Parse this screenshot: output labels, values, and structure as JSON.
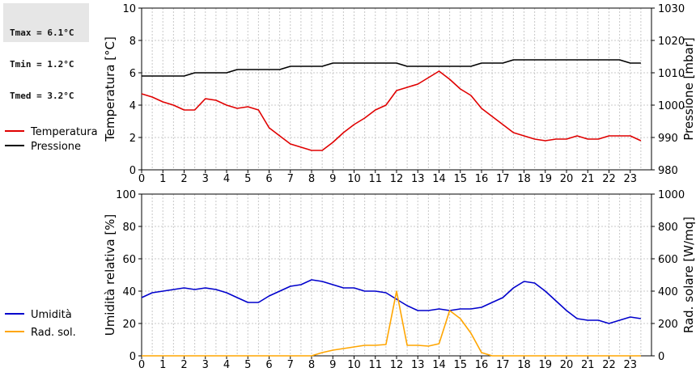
{
  "stats": [
    {
      "label": "Tmax",
      "value": "6.1°C"
    },
    {
      "label": "Tmin",
      "value": "1.2°C"
    },
    {
      "label": "Tmed",
      "value": "3.2°C"
    }
  ],
  "colors": {
    "temperature": "#e00000",
    "pressure": "#000000",
    "humidity": "#0000cc",
    "radiation": "#ffa500",
    "grid": "#c8c8c8",
    "stats_bg": "#e6e6e6"
  },
  "chart_data": [
    {
      "type": "line",
      "grid": true,
      "legend_position": "left",
      "xlim": [
        0,
        24
      ],
      "x_ticks": [
        0,
        1,
        2,
        3,
        4,
        5,
        6,
        7,
        8,
        9,
        10,
        11,
        12,
        13,
        14,
        15,
        16,
        17,
        18,
        19,
        20,
        21,
        22,
        23
      ],
      "left_axis": {
        "label": "Temperatura [°C]",
        "lim": [
          0,
          10
        ],
        "ticks": [
          0,
          2,
          4,
          6,
          8,
          10
        ]
      },
      "right_axis": {
        "label": "Pressione [mbar]",
        "lim": [
          980,
          1030
        ],
        "ticks": [
          980,
          990,
          1000,
          1010,
          1020,
          1030
        ]
      },
      "series": [
        {
          "name": "Temperatura",
          "axis": "left",
          "color": "#e00000",
          "x": [
            0,
            0.5,
            1,
            1.5,
            2,
            2.5,
            3,
            3.5,
            4,
            4.5,
            5,
            5.5,
            6,
            6.5,
            7,
            7.5,
            8,
            8.5,
            9,
            9.5,
            10,
            10.5,
            11,
            11.5,
            12,
            12.5,
            13,
            13.5,
            14,
            14.5,
            15,
            15.5,
            16,
            16.5,
            17,
            17.5,
            18,
            18.5,
            19,
            19.5,
            20,
            20.5,
            21,
            21.5,
            22,
            22.5,
            23,
            23.5
          ],
          "y": [
            4.7,
            4.5,
            4.2,
            4.0,
            3.7,
            3.7,
            4.4,
            4.3,
            4.0,
            3.8,
            3.9,
            3.7,
            2.6,
            2.1,
            1.6,
            1.4,
            1.2,
            1.2,
            1.7,
            2.3,
            2.8,
            3.2,
            3.7,
            4.0,
            4.9,
            5.1,
            5.3,
            5.7,
            6.1,
            5.6,
            5.0,
            4.6,
            3.8,
            3.3,
            2.8,
            2.3,
            2.1,
            1.9,
            1.8,
            1.9,
            1.9,
            2.1,
            1.9,
            1.9,
            2.1,
            2.1,
            2.1,
            1.8
          ]
        },
        {
          "name": "Pressione",
          "axis": "right",
          "color": "#000000",
          "x": [
            0,
            0.5,
            1,
            1.5,
            2,
            2.5,
            3,
            3.5,
            4,
            4.5,
            5,
            5.5,
            6,
            6.5,
            7,
            7.5,
            8,
            8.5,
            9,
            9.5,
            10,
            10.5,
            11,
            11.5,
            12,
            12.5,
            13,
            13.5,
            14,
            14.5,
            15,
            15.5,
            16,
            16.5,
            17,
            17.5,
            18,
            18.5,
            19,
            19.5,
            20,
            20.5,
            21,
            21.5,
            22,
            22.5,
            23,
            23.5
          ],
          "y": [
            1009,
            1009,
            1009,
            1009,
            1009,
            1010,
            1010,
            1010,
            1010,
            1011,
            1011,
            1011,
            1011,
            1011,
            1012,
            1012,
            1012,
            1012,
            1013,
            1013,
            1013,
            1013,
            1013,
            1013,
            1013,
            1012,
            1012,
            1012,
            1012,
            1012,
            1012,
            1012,
            1013,
            1013,
            1013,
            1014,
            1014,
            1014,
            1014,
            1014,
            1014,
            1014,
            1014,
            1014,
            1014,
            1014,
            1013,
            1013
          ]
        }
      ]
    },
    {
      "type": "line",
      "grid": true,
      "legend_position": "left",
      "xlim": [
        0,
        24
      ],
      "x_ticks": [
        0,
        1,
        2,
        3,
        4,
        5,
        6,
        7,
        8,
        9,
        10,
        11,
        12,
        13,
        14,
        15,
        16,
        17,
        18,
        19,
        20,
        21,
        22,
        23
      ],
      "left_axis": {
        "label": "Umidità relativa [%]",
        "lim": [
          0,
          100
        ],
        "ticks": [
          0,
          20,
          40,
          60,
          80,
          100
        ]
      },
      "right_axis": {
        "label": "Rad. solare [W/mq]",
        "lim": [
          0,
          1000
        ],
        "ticks": [
          0,
          200,
          400,
          600,
          800,
          1000
        ]
      },
      "series": [
        {
          "name": "Umidità",
          "axis": "left",
          "color": "#0000cc",
          "x": [
            0,
            0.5,
            1,
            1.5,
            2,
            2.5,
            3,
            3.5,
            4,
            4.5,
            5,
            5.5,
            6,
            6.5,
            7,
            7.5,
            8,
            8.5,
            9,
            9.5,
            10,
            10.5,
            11,
            11.5,
            12,
            12.5,
            13,
            13.5,
            14,
            14.5,
            15,
            15.5,
            16,
            16.5,
            17,
            17.5,
            18,
            18.5,
            19,
            19.5,
            20,
            20.5,
            21,
            21.5,
            22,
            22.5,
            23,
            23.5
          ],
          "y": [
            36,
            39,
            40,
            41,
            42,
            41,
            42,
            41,
            39,
            36,
            33,
            33,
            37,
            40,
            43,
            44,
            47,
            46,
            44,
            42,
            42,
            40,
            40,
            39,
            35,
            31,
            28,
            28,
            29,
            28,
            29,
            29,
            30,
            33,
            36,
            42,
            46,
            45,
            40,
            34,
            28,
            23,
            22,
            22,
            20,
            22,
            24,
            23
          ]
        },
        {
          "name": "Rad. sol.",
          "axis": "right",
          "color": "#ffa500",
          "x": [
            0,
            0.5,
            1,
            1.5,
            2,
            2.5,
            3,
            3.5,
            4,
            4.5,
            5,
            5.5,
            6,
            6.5,
            7,
            7.5,
            8,
            8.5,
            9,
            9.5,
            10,
            10.5,
            11,
            11.5,
            12,
            12.5,
            13,
            13.5,
            14,
            14.5,
            15,
            15.5,
            16,
            16.5,
            17,
            17.5,
            18,
            18.5,
            19,
            19.5,
            20,
            20.5,
            21,
            21.5,
            22,
            22.5,
            23,
            23.5
          ],
          "y": [
            0,
            0,
            0,
            0,
            0,
            0,
            0,
            0,
            0,
            0,
            0,
            0,
            0,
            0,
            0,
            0,
            0,
            20,
            35,
            45,
            55,
            65,
            65,
            70,
            400,
            65,
            65,
            60,
            75,
            280,
            230,
            140,
            20,
            0,
            0,
            0,
            0,
            0,
            0,
            0,
            0,
            0,
            0,
            0,
            0,
            0,
            0,
            0
          ]
        }
      ]
    }
  ]
}
